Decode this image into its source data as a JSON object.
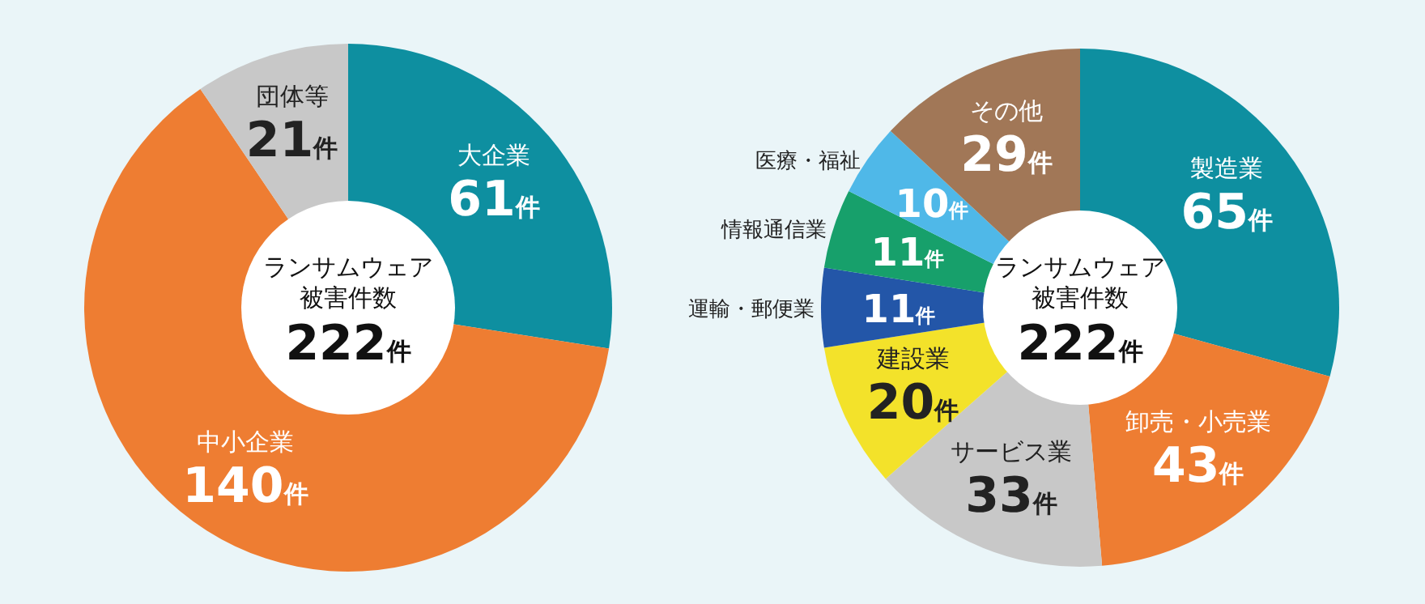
{
  "chart_data": [
    {
      "type": "donut",
      "categories": [
        "大企業",
        "中小企業",
        "団体等"
      ],
      "values": [
        61,
        140,
        21
      ],
      "colors": [
        "#0e8fa0",
        "#ee7d32",
        "#c8c8c8"
      ],
      "value_labels": [
        "61件",
        "140件",
        "21件"
      ],
      "annotations": [
        "ランサムウェア",
        "被害件数",
        "222件"
      ]
    },
    {
      "type": "donut",
      "categories": [
        "製造業",
        "卸売・小売業",
        "サービス業",
        "建設業",
        "運輸・郵便業",
        "情報通信業",
        "医療・福祉",
        "その他"
      ],
      "values": [
        65,
        43,
        33,
        20,
        11,
        11,
        10,
        29
      ],
      "colors": [
        "#0e8fa0",
        "#ee7d32",
        "#c8c8c8",
        "#f3e22a",
        "#2356a8",
        "#17a06b",
        "#4fb8e8",
        "#a17757"
      ],
      "value_labels": [
        "65件",
        "43件",
        "33件",
        "20件",
        "11件",
        "11件",
        "10件",
        "29件"
      ],
      "annotations": [
        "ランサムウェア",
        "被害件数",
        "222件"
      ]
    }
  ]
}
